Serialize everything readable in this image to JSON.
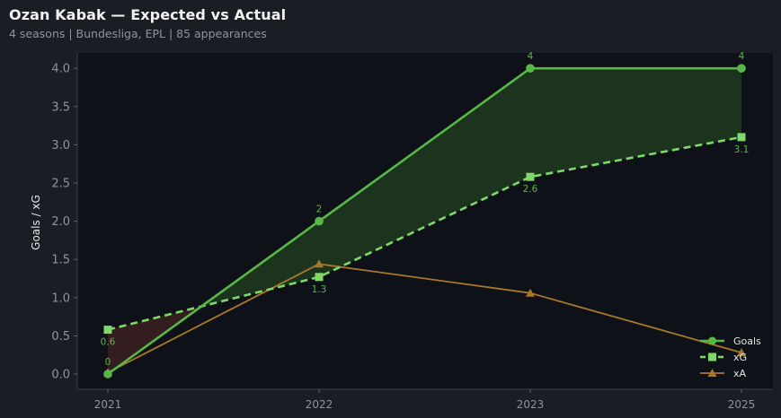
{
  "header": {
    "title": "Ozan Kabak — Expected vs Actual",
    "subtitle": "4 seasons | Bundesliga, EPL | 85 appearances"
  },
  "colors": {
    "goals": "#58b847",
    "xg": "#7ed96a",
    "xa": "#a7782a",
    "overperform_fill": "#1f3a1f",
    "underperform_fill": "#3a2020",
    "plot_bg": "#0e1117",
    "page_bg": "#1a1d24",
    "axis_text": "#8f949c"
  },
  "chart_data": {
    "type": "line",
    "title": "",
    "xlabel": "",
    "ylabel": "Goals / xG",
    "categories": [
      "2021",
      "2022",
      "2023",
      "2025"
    ],
    "ylim": [
      -0.2,
      4.2
    ],
    "yticks": [
      0.0,
      0.5,
      1.0,
      1.5,
      2.0,
      2.5,
      3.0,
      3.5,
      4.0
    ],
    "ytick_labels": [
      "0.0",
      "0.5",
      "1.0",
      "1.5",
      "2.0",
      "2.5",
      "3.0",
      "3.5",
      "4.0"
    ],
    "grid": false,
    "legend_position": "bottom-right",
    "series": [
      {
        "name": "Goals",
        "key": "goals",
        "marker": "circle",
        "dash": "solid",
        "values": [
          0,
          2,
          4,
          4
        ],
        "labels": [
          "0",
          "2",
          "4",
          "4"
        ]
      },
      {
        "name": "xG",
        "key": "xg",
        "marker": "square",
        "dash": "dashed",
        "values": [
          0.58,
          1.27,
          2.58,
          3.1
        ],
        "labels": [
          "0.6",
          "1.3",
          "2.6",
          "3.1"
        ]
      },
      {
        "name": "xA",
        "key": "xa",
        "marker": "triangle",
        "dash": "solid",
        "values": [
          0.02,
          1.44,
          1.06,
          0.28
        ],
        "labels": []
      }
    ]
  }
}
